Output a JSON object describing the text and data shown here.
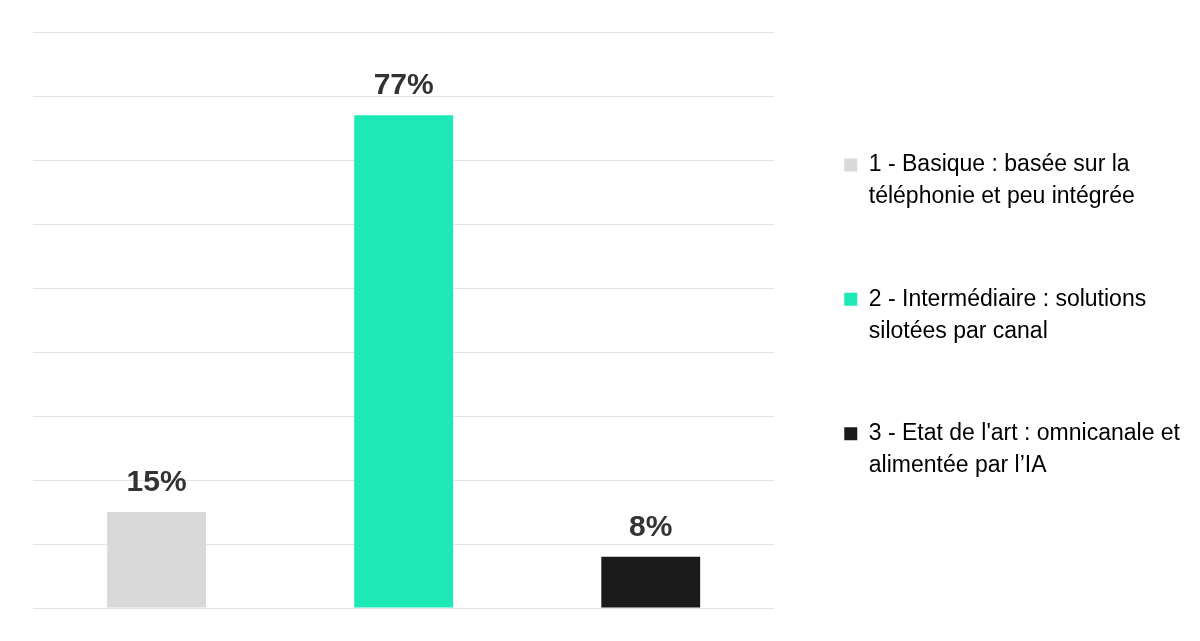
{
  "chart_data": {
    "type": "bar",
    "categories": [
      null,
      null,
      null
    ],
    "series": [
      {
        "name": "1 - Basique : basée sur la téléphonie et peu intégrée",
        "color": "#d9d9d9",
        "values": [
          15,
          null,
          null
        ],
        "value_labels": [
          "15%",
          null,
          null
        ]
      },
      {
        "name": "2 - Intermédiaire : solutions silotées par canal",
        "color": "#1de9b6",
        "values": [
          null,
          77,
          null
        ],
        "value_labels": [
          null,
          "77%",
          null
        ]
      },
      {
        "name": "3 - Etat de l'art : omnicanale et alimentée par l’IA",
        "color": "#1a1a1a",
        "values": [
          null,
          null,
          8
        ],
        "value_labels": [
          null,
          null,
          "8%"
        ]
      }
    ],
    "ylim": [
      0,
      90
    ],
    "yticks": [
      {
        "value": 0,
        "label": null
      },
      {
        "value": 10,
        "label": null
      },
      {
        "value": 20,
        "label": null
      },
      {
        "value": 30,
        "label": null
      },
      {
        "value": 40,
        "label": null
      },
      {
        "value": 50,
        "label": null
      },
      {
        "value": 60,
        "label": null
      },
      {
        "value": 70,
        "label": null
      },
      {
        "value": 80,
        "label": null
      },
      {
        "value": 90,
        "label": null
      }
    ],
    "grid": "y",
    "tick_labels": false,
    "legend": "right",
    "stacked": true
  }
}
